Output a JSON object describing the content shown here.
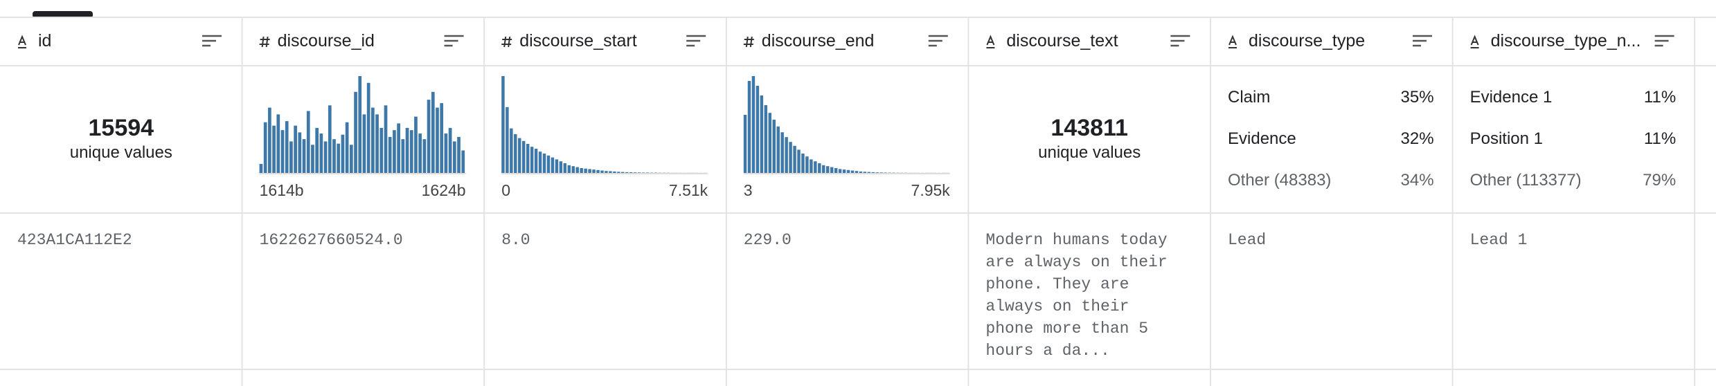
{
  "columns": [
    {
      "name": "id",
      "kind": "string",
      "summary": {
        "unique": "15594",
        "unique_label": "unique values"
      },
      "cell": "423A1CA112E2"
    },
    {
      "name": "discourse_id",
      "kind": "numeric",
      "summary": {
        "histogram": [
          8,
          45,
          58,
          42,
          52,
          38,
          46,
          28,
          42,
          36,
          30,
          55,
          25,
          40,
          35,
          28,
          60,
          30,
          26,
          34,
          45,
          25,
          72,
          86,
          52,
          80,
          58,
          52,
          40,
          60,
          32,
          38,
          44,
          30,
          40,
          38,
          50,
          35,
          30,
          65,
          72,
          58,
          62,
          35,
          40,
          28,
          32,
          20
        ],
        "min_label": "1614b",
        "max_label": "1624b"
      },
      "cell": "1622627660524.0"
    },
    {
      "name": "discourse_start",
      "kind": "numeric",
      "summary": {
        "histogram": [
          100,
          68,
          46,
          40,
          36,
          33,
          30,
          27,
          25,
          22,
          20,
          18,
          16,
          14,
          12,
          10,
          8,
          7,
          6,
          5,
          4.5,
          4,
          3.5,
          3,
          2.5,
          2,
          1.8,
          1.5,
          1.2,
          1,
          0.8,
          0.7,
          0.6,
          0.5,
          0.4,
          0.4,
          0.3,
          0.3,
          0.2,
          0.2,
          0.2,
          0.1,
          0.1,
          0.1,
          0.1,
          0.1,
          0.1,
          0.1,
          0.1,
          0.1
        ],
        "min_label": "0",
        "max_label": "7.51k"
      },
      "cell": "8.0"
    },
    {
      "name": "discourse_end",
      "kind": "numeric",
      "summary": {
        "histogram": [
          60,
          95,
          100,
          90,
          80,
          70,
          62,
          55,
          48,
          42,
          37,
          32,
          28,
          24,
          20,
          17,
          14,
          12,
          10,
          8,
          7,
          6,
          5,
          4,
          3.5,
          3,
          2.5,
          2,
          1.5,
          1.2,
          1,
          0.8,
          0.6,
          0.5,
          0.4,
          0.3,
          0.3,
          0.2,
          0.2,
          0.2,
          0.1,
          0.1,
          0.1,
          0.1,
          0.1,
          0.1,
          0.1,
          0.1,
          0.1,
          0.1
        ],
        "min_label": "3",
        "max_label": "7.95k"
      },
      "cell": "229.0"
    },
    {
      "name": "discourse_text",
      "kind": "string",
      "summary": {
        "unique": "143811",
        "unique_label": "unique values"
      },
      "cell": "Modern humans today are always on their phone. They are always on their phone more than 5 hours a da..."
    },
    {
      "name": "discourse_type",
      "kind": "string",
      "summary": {
        "top": [
          {
            "label": "Claim",
            "share": "35%"
          },
          {
            "label": "Evidence",
            "share": "32%"
          },
          {
            "label": "Other (48383)",
            "share": "34%"
          }
        ]
      },
      "cell": "Lead"
    },
    {
      "name": "discourse_type_n...",
      "kind": "string",
      "summary": {
        "top": [
          {
            "label": "Evidence 1",
            "share": "11%"
          },
          {
            "label": "Position 1",
            "share": "11%"
          },
          {
            "label": "Other (113377)",
            "share": "79%"
          }
        ]
      },
      "cell": "Lead 1"
    }
  ]
}
